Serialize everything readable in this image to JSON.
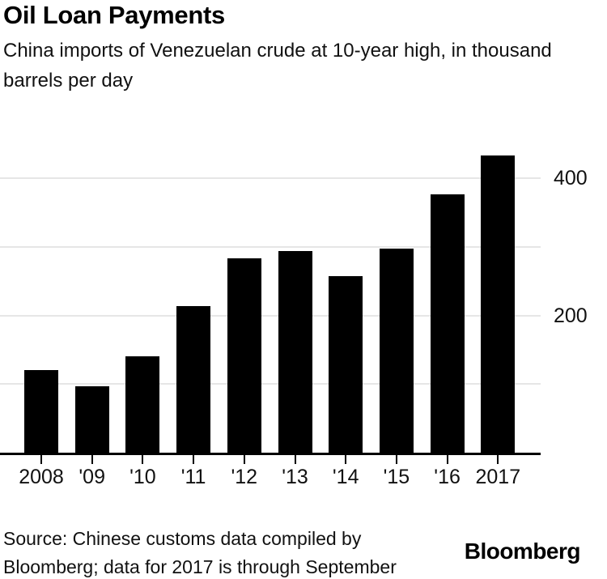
{
  "header": {
    "title": "Oil Loan Payments",
    "subtitle": "China imports of Venezuelan crude at 10-year high, in thousand barrels per day"
  },
  "chart_data": {
    "type": "bar",
    "title": "Oil Loan Payments",
    "subtitle": "China imports of Venezuelan crude at 10-year high, in thousand barrels per day",
    "categories": [
      "2008",
      "'09",
      "'10",
      "'11",
      "'12",
      "'13",
      "'14",
      "'15",
      "'16",
      "2017"
    ],
    "values": [
      120,
      97,
      141,
      214,
      284,
      294,
      257,
      298,
      377,
      433
    ],
    "xlabel": "",
    "ylabel": "thousand barrels per day",
    "ylim": [
      0,
      483
    ],
    "yticks": [
      200,
      400
    ],
    "gridline_values": [
      100,
      200,
      300,
      400
    ],
    "grid": "horizontal-only",
    "legend": "none",
    "y_axis_side": "right",
    "bar_color": "#000000",
    "gridline_color": "#e6e6e6",
    "axis_line_color": "#000000"
  },
  "footer": {
    "source": "Source: Chinese customs data compiled by Bloomberg; data for 2017 is through September",
    "brand": "Bloomberg"
  }
}
